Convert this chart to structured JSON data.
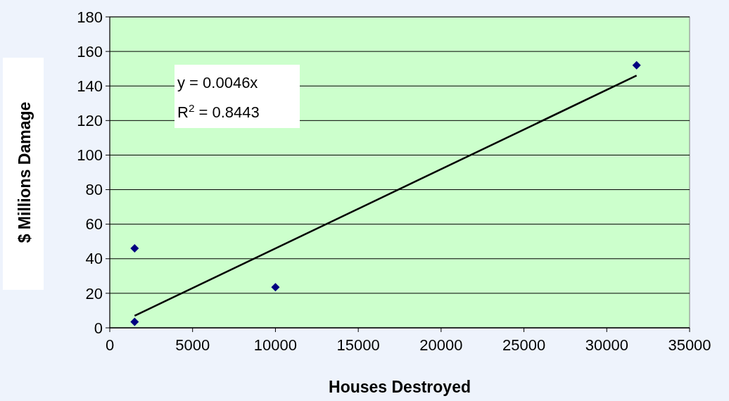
{
  "chart_data": {
    "type": "scatter",
    "xlabel": "Houses Destroyed",
    "ylabel": "$ Millions Damage",
    "xlim": [
      0,
      35000
    ],
    "xticks": [
      0,
      5000,
      10000,
      15000,
      20000,
      25000,
      30000,
      35000
    ],
    "ylim": [
      0,
      180
    ],
    "yticks": [
      0,
      20,
      40,
      60,
      80,
      100,
      120,
      140,
      160,
      180
    ],
    "grid": "y",
    "marker": "diamond",
    "annotations": [
      "y = 0.0046x",
      "R$^{2}$ = 0.8443"
    ],
    "series": [
      {
        "color": "#000080",
        "x": [
          1500,
          1500,
          10000,
          31800
        ],
        "values": [
          3.5,
          46,
          23.5,
          152
        ]
      },
      {
        "type": "line",
        "color": "#000000",
        "marker": "none",
        "line_style": "solid",
        "x": [
          1500,
          31800
        ],
        "values": [
          7,
          146
        ]
      }
    ]
  }
}
